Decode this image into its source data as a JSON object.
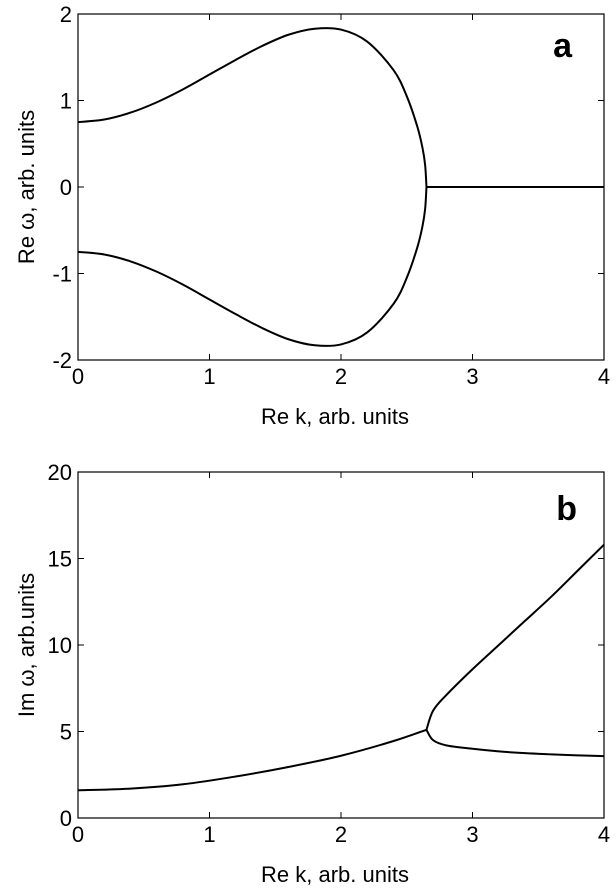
{
  "chart_data": [
    {
      "type": "line",
      "panel_label": "a",
      "xlabel": "Re k, arb. units",
      "ylabel": "Re ω, arb. units",
      "xlim": [
        0,
        4
      ],
      "ylim": [
        -2,
        2
      ],
      "xticks": [
        "0",
        "1",
        "2",
        "3",
        "4"
      ],
      "yticks": [
        "-2",
        "-1",
        "0",
        "1",
        "2"
      ],
      "grid": false,
      "color": "#000000",
      "series": [
        {
          "x": [
            0,
            0.2,
            0.4,
            0.6,
            0.8,
            1.0,
            1.2,
            1.4,
            1.6,
            1.8,
            2.0,
            2.2,
            2.4,
            2.5,
            2.58,
            2.62,
            2.64,
            2.65
          ],
          "values": [
            0.75,
            0.78,
            0.86,
            0.98,
            1.13,
            1.3,
            1.47,
            1.63,
            1.76,
            1.83,
            1.82,
            1.68,
            1.35,
            1.05,
            0.7,
            0.45,
            0.25,
            0
          ]
        },
        {
          "x": [
            0,
            0.2,
            0.4,
            0.6,
            0.8,
            1.0,
            1.2,
            1.4,
            1.6,
            1.8,
            2.0,
            2.2,
            2.4,
            2.5,
            2.58,
            2.62,
            2.64,
            2.65
          ],
          "values": [
            -0.75,
            -0.78,
            -0.86,
            -0.98,
            -1.13,
            -1.3,
            -1.47,
            -1.63,
            -1.76,
            -1.83,
            -1.82,
            -1.68,
            -1.35,
            -1.05,
            -0.7,
            -0.45,
            -0.25,
            0
          ]
        },
        {
          "x": [
            2.65,
            4.0
          ],
          "values": [
            0,
            0
          ]
        }
      ]
    },
    {
      "type": "line",
      "panel_label": "b",
      "xlabel": "Re k, arb. units",
      "ylabel": "Im ω, arb.units",
      "xlim": [
        0,
        4
      ],
      "ylim": [
        0,
        20
      ],
      "xticks": [
        "0",
        "1",
        "2",
        "3",
        "4"
      ],
      "yticks": [
        "0",
        "5",
        "10",
        "15",
        "20"
      ],
      "grid": false,
      "color": "#000000",
      "series": [
        {
          "x": [
            0,
            0.4,
            0.8,
            1.2,
            1.6,
            2.0,
            2.4,
            2.65
          ],
          "values": [
            1.6,
            1.7,
            1.95,
            2.4,
            2.95,
            3.6,
            4.45,
            5.1
          ]
        },
        {
          "x": [
            2.65,
            2.7,
            2.8,
            3.0,
            3.2,
            3.4,
            3.6,
            3.8,
            4.0
          ],
          "values": [
            5.1,
            6.2,
            7.1,
            8.6,
            10.0,
            11.4,
            12.8,
            14.3,
            15.8
          ]
        },
        {
          "x": [
            2.65,
            2.7,
            2.8,
            3.0,
            3.2,
            3.4,
            3.6,
            3.8,
            4.0
          ],
          "values": [
            5.1,
            4.5,
            4.2,
            4.0,
            3.85,
            3.75,
            3.68,
            3.62,
            3.58
          ]
        }
      ]
    }
  ]
}
